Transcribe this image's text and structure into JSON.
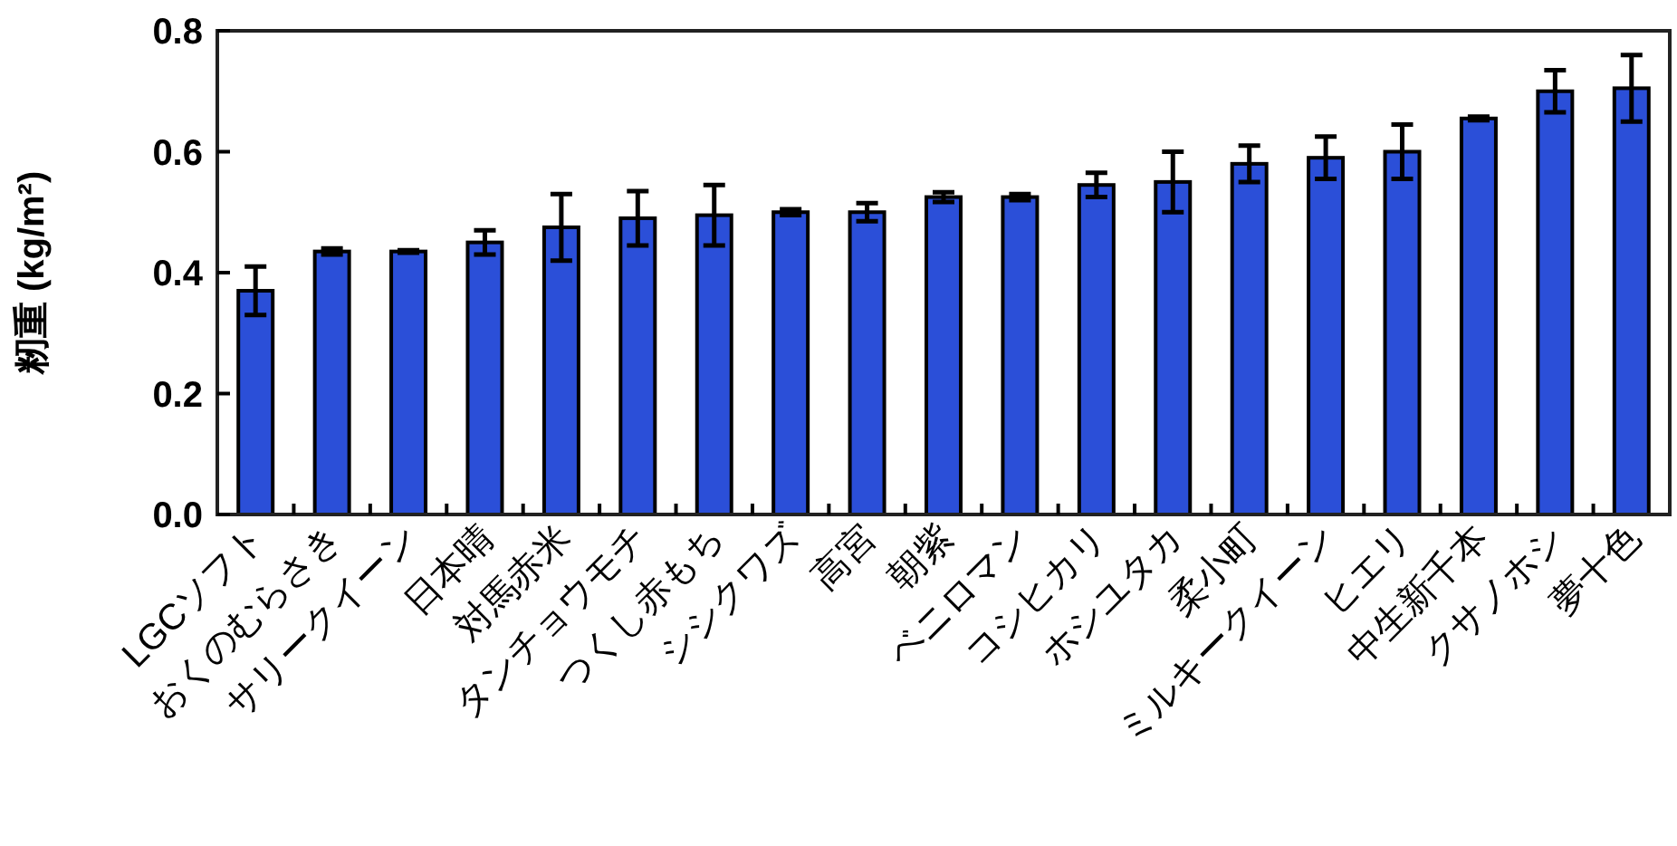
{
  "chart_data": {
    "type": "bar",
    "ylabel": "籾重 (kg/m²)",
    "categories": [
      "LGCソフト",
      "おくのむらさき",
      "サリークイーン",
      "日本晴",
      "対馬赤米",
      "タンチョウモチ",
      "つくし赤もち",
      "シシクワズ",
      "高宮",
      "朝紫",
      "ベニロマン",
      "コシヒカリ",
      "ホシユタカ",
      "柔小町",
      "ミルキークイーン",
      "ヒエリ",
      "中生新千本",
      "クサノホシ",
      "夢十色"
    ],
    "values": [
      0.37,
      0.435,
      0.435,
      0.45,
      0.475,
      0.49,
      0.495,
      0.5,
      0.5,
      0.525,
      0.525,
      0.545,
      0.55,
      0.58,
      0.59,
      0.6,
      0.655,
      0.7,
      0.705
    ],
    "errors": [
      0.04,
      0.005,
      0.002,
      0.02,
      0.055,
      0.045,
      0.05,
      0.005,
      0.015,
      0.008,
      0.005,
      0.02,
      0.05,
      0.03,
      0.035,
      0.045,
      0.003,
      0.035,
      0.055
    ],
    "color": "#2b4fd8",
    "ylim": [
      0,
      0.8
    ],
    "yticks": [
      {
        "value": 0,
        "label": "0.0"
      },
      {
        "value": 0.2,
        "label": "0.2"
      },
      {
        "value": 0.4,
        "label": "0.4"
      },
      {
        "value": 0.6,
        "label": "0.6"
      },
      {
        "value": 0.8,
        "label": "0.8"
      }
    ],
    "grid": false
  }
}
